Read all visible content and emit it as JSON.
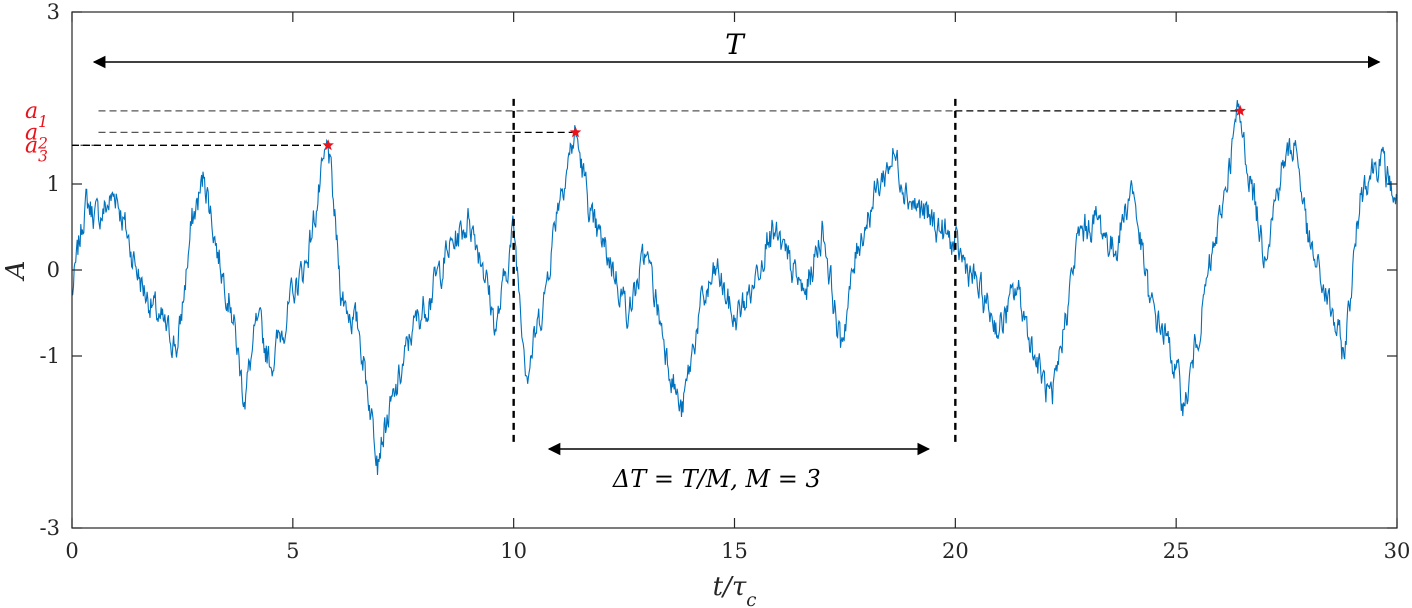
{
  "chart_data": {
    "type": "line",
    "xlabel": "t/τ_c",
    "ylabel": "A",
    "xlim": [
      0,
      30
    ],
    "ylim": [
      -3,
      3
    ],
    "x_ticks": [
      0,
      5,
      10,
      15,
      20,
      25,
      30
    ],
    "x_tick_labels": [
      "0",
      "5",
      "10",
      "15",
      "20",
      "25",
      "30"
    ],
    "y_ticks": [
      -3,
      -1,
      0,
      1,
      3
    ],
    "y_tick_labels": [
      "-3",
      "-1",
      "0",
      "1",
      "3"
    ],
    "grid": false,
    "series": [
      {
        "color": "#0072bd",
        "x": [
          0,
          0.3,
          0.6,
          1,
          1.3,
          1.6,
          2,
          2.4,
          2.7,
          3,
          3.3,
          3.6,
          3.9,
          4.2,
          4.5,
          5,
          5.3,
          5.8,
          6.1,
          6.5,
          6.9,
          7.3,
          7.7,
          8.1,
          8.5,
          9,
          9.3,
          9.6,
          10,
          10.3,
          10.7,
          11,
          11.4,
          11.8,
          12.2,
          12.6,
          13,
          13.4,
          13.8,
          14.2,
          14.6,
          15,
          15.4,
          15.8,
          16.2,
          16.6,
          17,
          17.4,
          17.8,
          18.2,
          18.6,
          19,
          19.4,
          19.8,
          20.2,
          20.6,
          21,
          21.4,
          21.8,
          22.2,
          22.5,
          22.8,
          23.2,
          23.6,
          24,
          24.4,
          24.8,
          25.2,
          25.6,
          26,
          26.4,
          26.7,
          27,
          27.4,
          27.7,
          28,
          28.4,
          28.8,
          29.2,
          29.6,
          30
        ],
        "y": [
          -0.3,
          0.8,
          0.6,
          0.9,
          0.3,
          -0.2,
          -0.6,
          -0.9,
          0.5,
          1.1,
          0.2,
          -0.4,
          -1.5,
          -0.6,
          -1.1,
          -0.3,
          0.1,
          1.45,
          -0.3,
          -0.7,
          -2.1,
          -1.5,
          -0.7,
          -0.3,
          0.2,
          0.6,
          0.1,
          -0.7,
          0.5,
          -1.2,
          -0.3,
          0.8,
          1.6,
          0.5,
          0.1,
          -0.5,
          0.2,
          -0.8,
          -1.7,
          -0.5,
          0.0,
          -0.6,
          -0.2,
          0.5,
          0.1,
          -0.3,
          0.5,
          -0.9,
          0.3,
          0.9,
          1.35,
          0.8,
          0.6,
          0.4,
          0.1,
          -0.3,
          -0.7,
          -0.2,
          -1.0,
          -1.6,
          -0.5,
          0.4,
          0.6,
          0.2,
          1.0,
          -0.4,
          -0.8,
          -1.6,
          -0.4,
          0.6,
          1.85,
          1.0,
          0.2,
          1.2,
          1.5,
          0.3,
          -0.3,
          -1.0,
          1.0,
          1.3,
          0.8
        ]
      }
    ],
    "peaks": [
      {
        "label": "a_1",
        "x": 26.45,
        "y": 1.85
      },
      {
        "label": "a_2",
        "x": 11.4,
        "y": 1.6
      },
      {
        "label": "a_3",
        "x": 5.8,
        "y": 1.45
      }
    ],
    "block_boundaries": [
      10,
      20
    ],
    "annotations": {
      "T_label": "T",
      "DT_label": "ΔT = T/M, M = 3",
      "T_arrow": [
        0.5,
        29.6
      ],
      "DT_arrow": [
        10.8,
        19.4
      ]
    }
  }
}
